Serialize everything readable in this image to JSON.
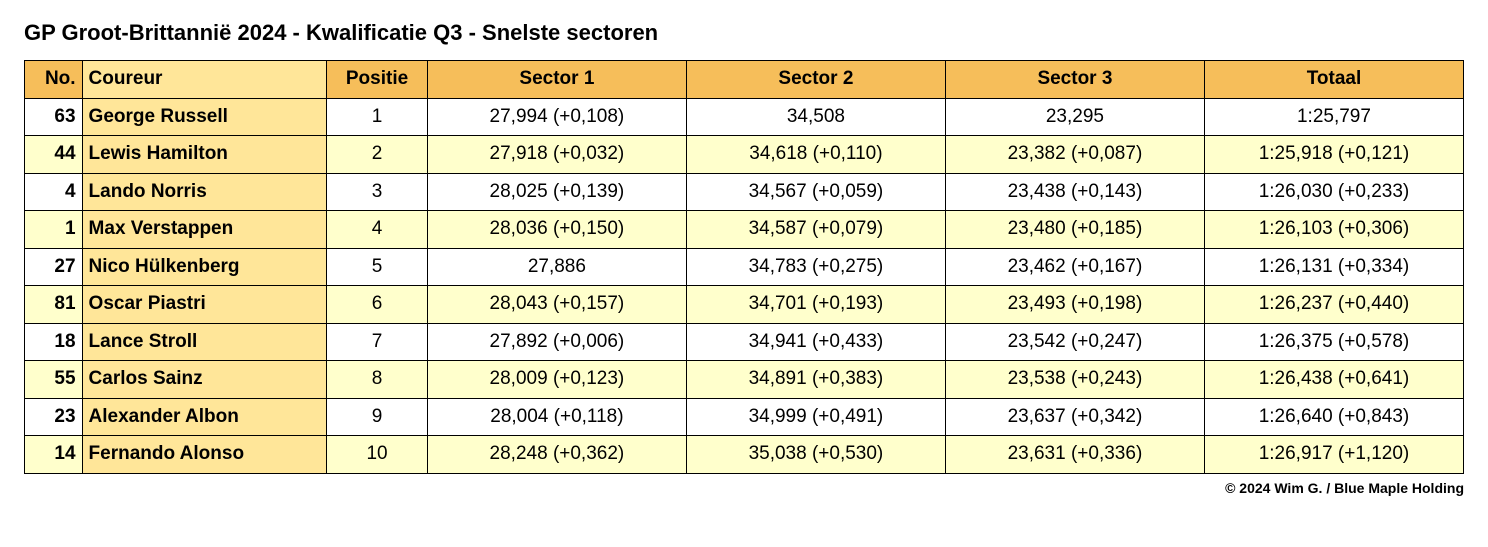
{
  "title": "GP Groot-Brittannië 2024 - Kwalificatie Q3 - Snelste sectoren",
  "footer": "© 2024 Wim G. / Blue Maple Holding",
  "colors": {
    "header_bg_main": "#f6be5a",
    "header_bg_name": "#ffe699",
    "row_odd_bg": "#ffffff",
    "row_even_bg": "#ffffcc",
    "border": "#000000"
  },
  "columns": {
    "no": "No.",
    "driver": "Coureur",
    "pos": "Positie",
    "s1": "Sector 1",
    "s2": "Sector 2",
    "s3": "Sector 3",
    "total": "Totaal"
  },
  "rows": [
    {
      "no": "63",
      "driver": "George Russell",
      "pos": "1",
      "s1": "27,994  (+0,108)",
      "s2": "34,508",
      "s3": "23,295",
      "total": "1:25,797"
    },
    {
      "no": "44",
      "driver": "Lewis Hamilton",
      "pos": "2",
      "s1": "27,918  (+0,032)",
      "s2": "34,618  (+0,110)",
      "s3": "23,382  (+0,087)",
      "total": "1:25,918 (+0,121)"
    },
    {
      "no": "4",
      "driver": "Lando Norris",
      "pos": "3",
      "s1": "28,025  (+0,139)",
      "s2": "34,567  (+0,059)",
      "s3": "23,438  (+0,143)",
      "total": "1:26,030 (+0,233)"
    },
    {
      "no": "1",
      "driver": "Max Verstappen",
      "pos": "4",
      "s1": "28,036  (+0,150)",
      "s2": "34,587  (+0,079)",
      "s3": "23,480  (+0,185)",
      "total": "1:26,103 (+0,306)"
    },
    {
      "no": "27",
      "driver": "Nico Hülkenberg",
      "pos": "5",
      "s1": "27,886",
      "s2": "34,783  (+0,275)",
      "s3": "23,462  (+0,167)",
      "total": "1:26,131 (+0,334)"
    },
    {
      "no": "81",
      "driver": "Oscar Piastri",
      "pos": "6",
      "s1": "28,043  (+0,157)",
      "s2": "34,701  (+0,193)",
      "s3": "23,493  (+0,198)",
      "total": "1:26,237 (+0,440)"
    },
    {
      "no": "18",
      "driver": "Lance Stroll",
      "pos": "7",
      "s1": "27,892  (+0,006)",
      "s2": "34,941  (+0,433)",
      "s3": "23,542  (+0,247)",
      "total": "1:26,375 (+0,578)"
    },
    {
      "no": "55",
      "driver": "Carlos Sainz",
      "pos": "8",
      "s1": "28,009  (+0,123)",
      "s2": "34,891  (+0,383)",
      "s3": "23,538  (+0,243)",
      "total": "1:26,438 (+0,641)"
    },
    {
      "no": "23",
      "driver": "Alexander Albon",
      "pos": "9",
      "s1": "28,004  (+0,118)",
      "s2": "34,999  (+0,491)",
      "s3": "23,637  (+0,342)",
      "total": "1:26,640 (+0,843)"
    },
    {
      "no": "14",
      "driver": "Fernando Alonso",
      "pos": "10",
      "s1": "28,248  (+0,362)",
      "s2": "35,038  (+0,530)",
      "s3": "23,631  (+0,336)",
      "total": "1:26,917 (+1,120)"
    }
  ]
}
